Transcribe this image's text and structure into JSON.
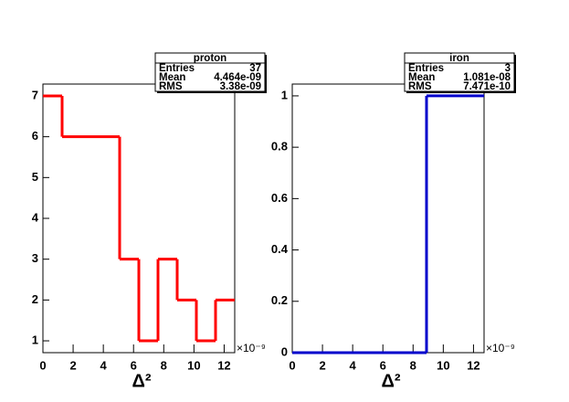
{
  "chart_data": [
    {
      "type": "histogram",
      "title": "proton",
      "bins": [
        0,
        1.27,
        2.54,
        3.81,
        5.08,
        6.35,
        7.62,
        8.89,
        10.16,
        11.43,
        12.7
      ],
      "values": [
        7,
        6,
        6,
        6,
        3,
        1,
        3,
        2,
        1,
        2
      ],
      "color": "#ff0000",
      "xlim": [
        0,
        12.7
      ],
      "ylim": [
        0.71,
        7.29
      ],
      "xticks": [
        0,
        2,
        4,
        6,
        8,
        10,
        12
      ],
      "yticks": [
        1,
        2,
        3,
        4,
        5,
        6,
        7
      ],
      "xlabel": "Δ²",
      "x_exponent": "×10⁻⁹",
      "stats": [
        [
          "Entries",
          "37"
        ],
        [
          "Mean",
          "4.464e-09"
        ],
        [
          "RMS",
          "3.38e-09"
        ]
      ]
    },
    {
      "type": "histogram",
      "title": "iron",
      "bins": [
        0,
        1.27,
        2.54,
        3.81,
        5.08,
        6.35,
        7.62,
        8.89,
        10.16,
        11.43,
        12.7
      ],
      "values": [
        0,
        0,
        0,
        0,
        0,
        0,
        0,
        1,
        1,
        1
      ],
      "color": "#0000cc",
      "xlim": [
        0,
        12.7
      ],
      "ylim": [
        0,
        1.046
      ],
      "xticks": [
        0,
        2,
        4,
        6,
        8,
        10,
        12
      ],
      "yticks": [
        0,
        0.2,
        0.4,
        0.6,
        0.8,
        1
      ],
      "xlabel": "Δ²",
      "x_exponent": "×10⁻⁹",
      "stats": [
        [
          "Entries",
          "3"
        ],
        [
          "Mean",
          "1.081e-08"
        ],
        [
          "RMS",
          "7.471e-10"
        ]
      ]
    }
  ]
}
